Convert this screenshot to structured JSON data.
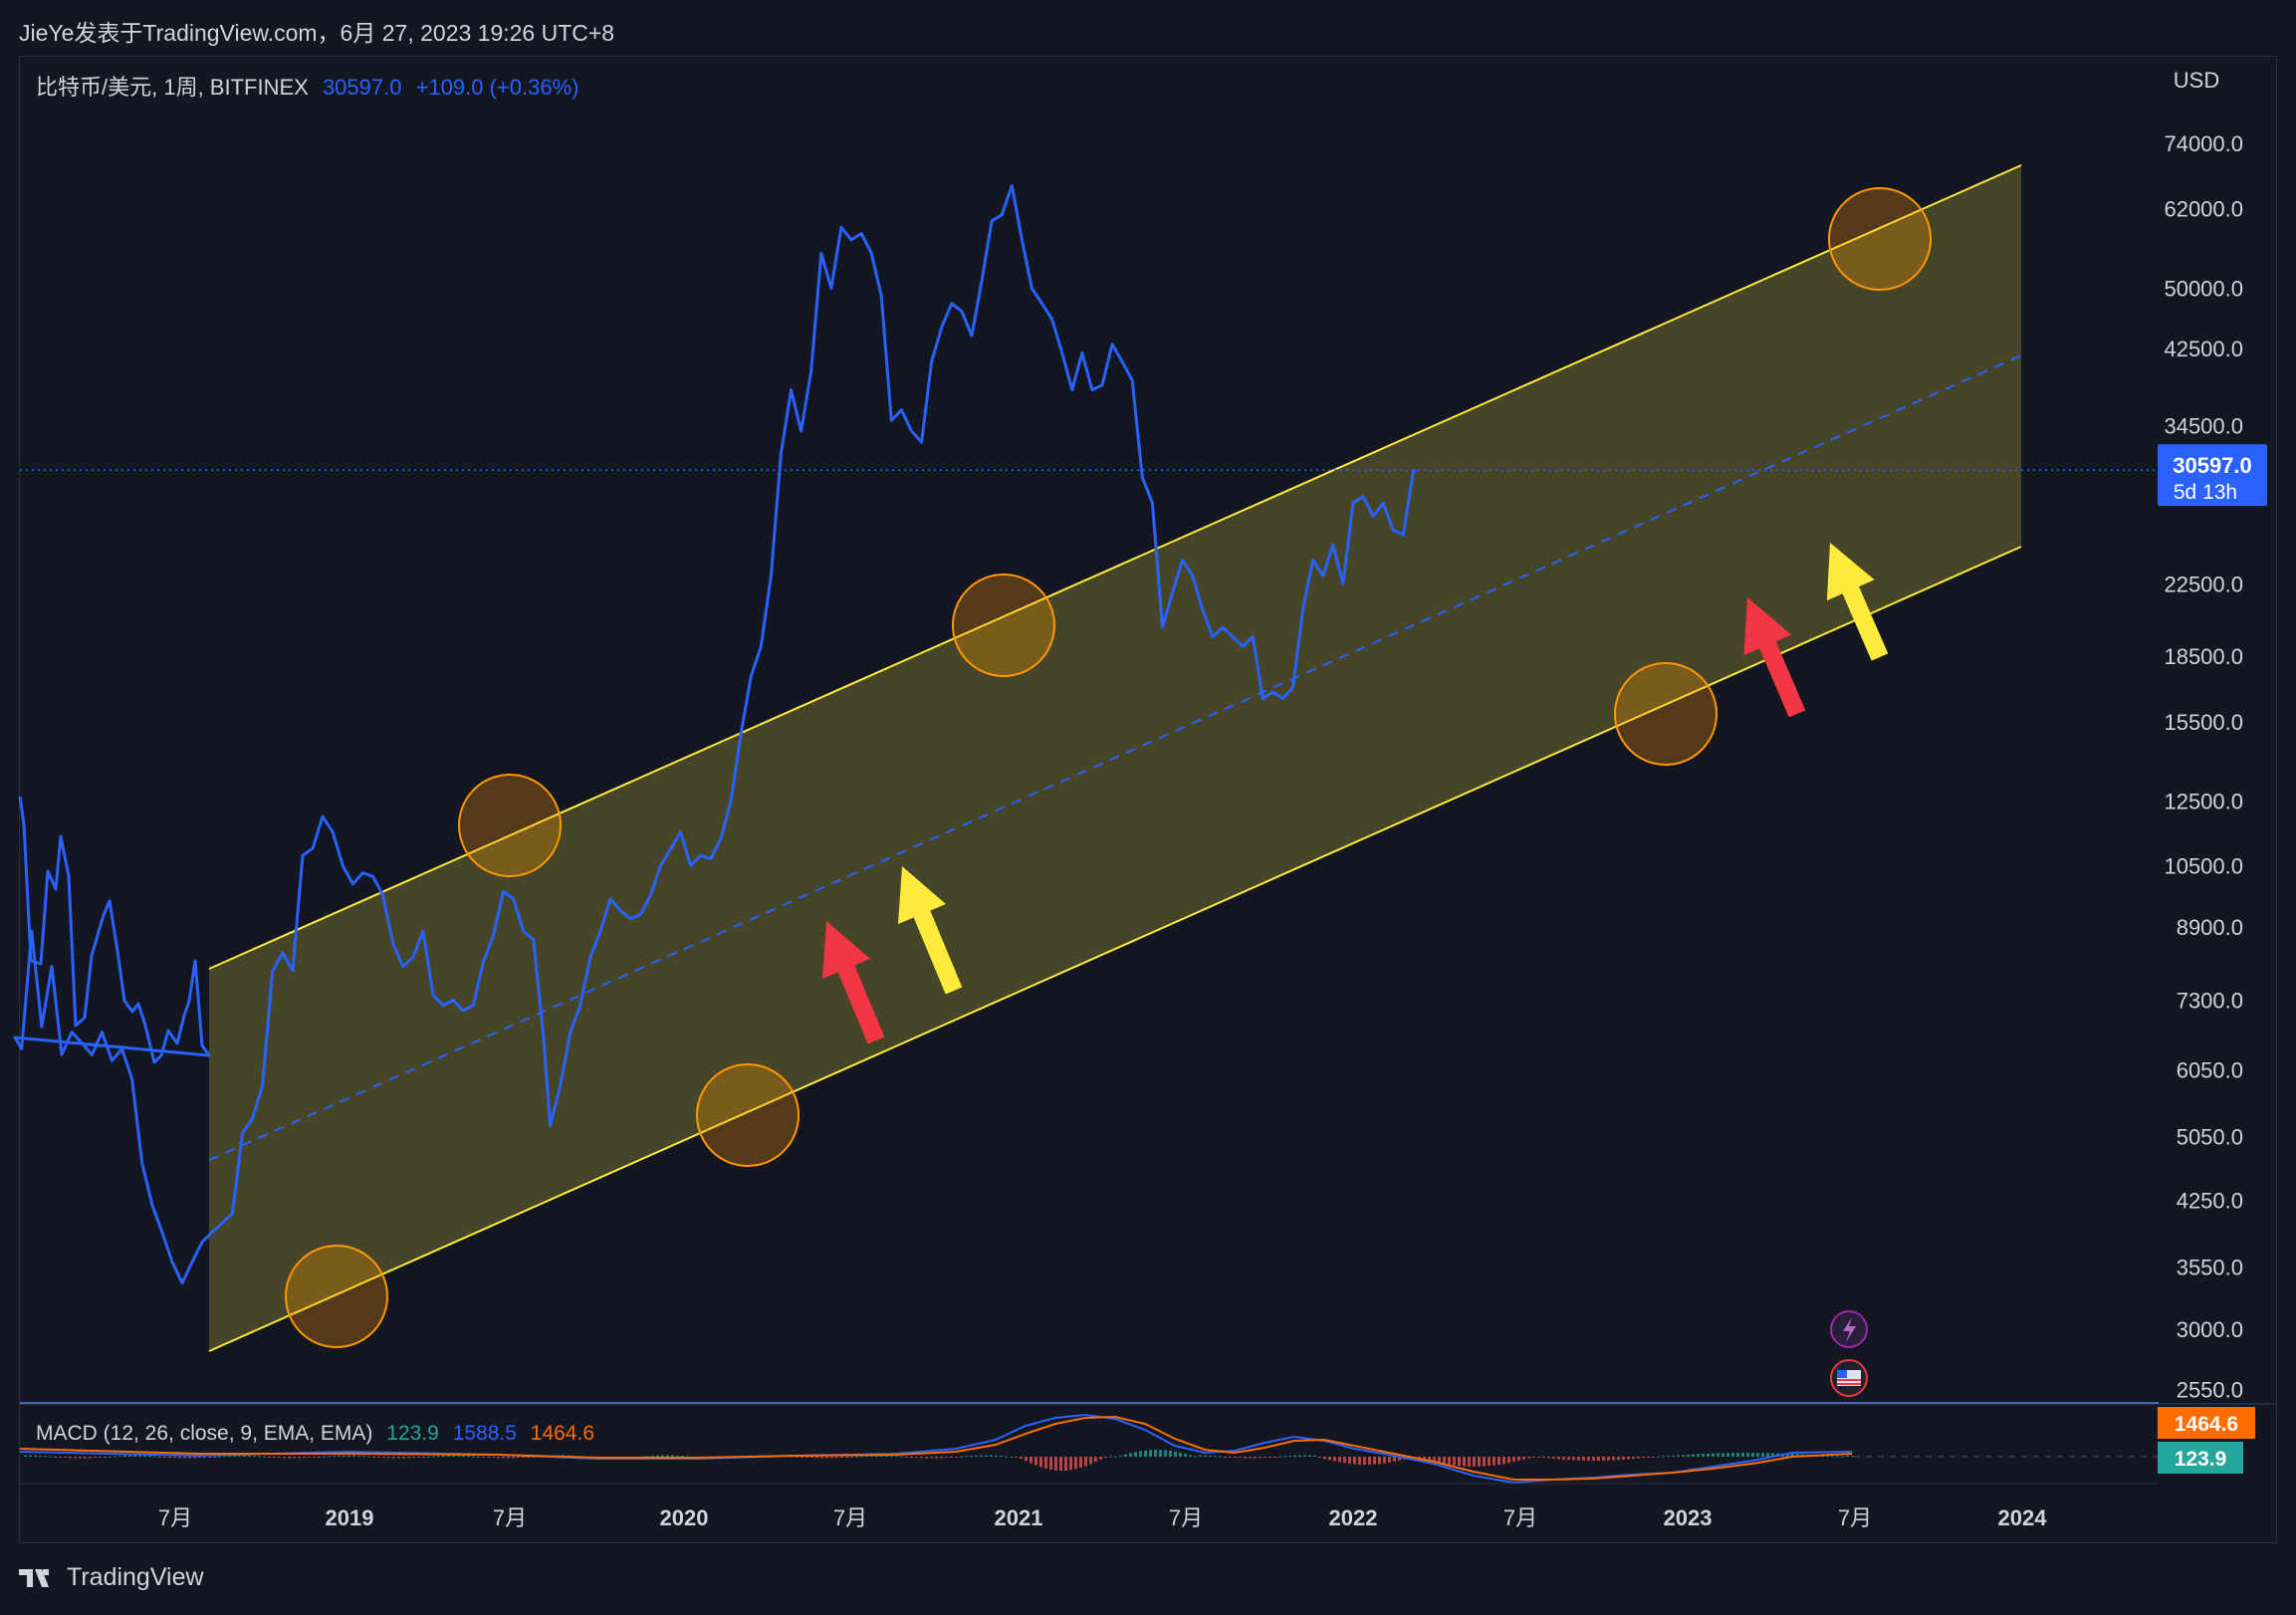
{
  "header": {
    "published": "JieYe发表于TradingView.com，6月 27, 2023 19:26 UTC+8"
  },
  "symbol": {
    "name": "比特币/美元, 1周, BITFINEX",
    "price": "30597.0",
    "change": "+109.0 (+0.36%)"
  },
  "price_axis": {
    "currency": "USD",
    "ticks": [
      "74000.0",
      "62000.0",
      "50000.0",
      "42500.0",
      "34500.0",
      "22500.0",
      "18500.0",
      "15500.0",
      "12500.0",
      "10500.0",
      "8900.0",
      "7300.0",
      "6050.0",
      "5050.0",
      "4250.0",
      "3550.0",
      "3000.0",
      "2550.0"
    ],
    "last_price_label": "30597.0",
    "countdown": "5d 13h"
  },
  "time_axis": {
    "ticks": [
      {
        "label": "7月",
        "bold": false
      },
      {
        "label": "2019",
        "bold": true
      },
      {
        "label": "7月",
        "bold": false
      },
      {
        "label": "2020",
        "bold": true
      },
      {
        "label": "7月",
        "bold": false
      },
      {
        "label": "2021",
        "bold": true
      },
      {
        "label": "7月",
        "bold": false
      },
      {
        "label": "2022",
        "bold": true
      },
      {
        "label": "7月",
        "bold": false
      },
      {
        "label": "2023",
        "bold": true
      },
      {
        "label": "7月",
        "bold": false
      },
      {
        "label": "2024",
        "bold": true
      }
    ]
  },
  "macd": {
    "name": "MACD (12, 26, close, 9, EMA, EMA)",
    "histogram": "123.9",
    "macd": "1588.5",
    "signal": "1464.6",
    "signal_badge": "1464.6",
    "hist_badge": "123.9"
  },
  "footer": {
    "brand": "TradingView"
  },
  "colors": {
    "price_line": "#2962ff",
    "channel": "#ffeb3b",
    "circle": "#ff9800",
    "arrow_red": "#f23645",
    "arrow_yellow": "#ffeb3b",
    "macd_signal": "#ff6d00",
    "macd_hist": "#26a69a"
  },
  "chart_data": {
    "type": "line",
    "scale": "log",
    "series": [
      {
        "values": [
          [
            2018.0,
            6600
          ],
          [
            2018.02,
            6400
          ],
          [
            2018.05,
            8800
          ],
          [
            2018.08,
            6800
          ],
          [
            2018.11,
            8000
          ],
          [
            2018.14,
            6300
          ],
          [
            2018.17,
            6700
          ],
          [
            2018.2,
            6500
          ],
          [
            2018.23,
            6300
          ],
          [
            2018.26,
            6700
          ],
          [
            2018.29,
            6200
          ],
          [
            2018.32,
            6400
          ],
          [
            2018.35,
            5900
          ],
          [
            2018.38,
            4700
          ],
          [
            2018.41,
            4200
          ],
          [
            2018.44,
            3900
          ],
          [
            2018.47,
            3600
          ],
          [
            2018.5,
            3400
          ],
          [
            2018.53,
            3600
          ],
          [
            2018.56,
            3800
          ],
          [
            2018.59,
            3900
          ],
          [
            2018.62,
            4000
          ],
          [
            2018.65,
            4100
          ],
          [
            2018.68,
            5100
          ],
          [
            2018.71,
            5300
          ],
          [
            2018.74,
            5800
          ],
          [
            2018.77,
            7900
          ],
          [
            2018.8,
            8300
          ],
          [
            2018.83,
            7900
          ],
          [
            2018.86,
            10800
          ],
          [
            2018.89,
            11000
          ],
          [
            2018.92,
            12000
          ],
          [
            2018.95,
            11500
          ],
          [
            2018.98,
            10500
          ],
          [
            2019.01,
            10000
          ],
          [
            2019.04,
            10300
          ],
          [
            2019.07,
            10200
          ],
          [
            2019.1,
            9700
          ],
          [
            2019.13,
            8500
          ],
          [
            2019.16,
            8000
          ],
          [
            2019.19,
            8200
          ],
          [
            2019.22,
            8800
          ],
          [
            2019.25,
            7400
          ],
          [
            2019.28,
            7200
          ],
          [
            2019.31,
            7300
          ],
          [
            2019.34,
            7100
          ],
          [
            2019.37,
            7200
          ],
          [
            2019.4,
            8100
          ],
          [
            2019.43,
            8700
          ],
          [
            2019.46,
            9800
          ],
          [
            2019.49,
            9600
          ],
          [
            2019.52,
            8800
          ],
          [
            2019.55,
            8600
          ],
          [
            2019.58,
            6600
          ],
          [
            2019.6,
            5200
          ],
          [
            2019.63,
            5800
          ],
          [
            2019.66,
            6700
          ],
          [
            2019.69,
            7200
          ],
          [
            2019.72,
            8200
          ],
          [
            2019.75,
            8800
          ],
          [
            2019.78,
            9600
          ],
          [
            2019.81,
            9300
          ],
          [
            2019.84,
            9100
          ],
          [
            2019.87,
            9200
          ],
          [
            2019.9,
            9700
          ],
          [
            2019.93,
            10500
          ],
          [
            2019.96,
            11000
          ],
          [
            2019.99,
            11500
          ],
          [
            2020.02,
            10500
          ],
          [
            2020.05,
            10800
          ],
          [
            2020.08,
            10700
          ],
          [
            2020.11,
            11300
          ],
          [
            2020.14,
            12500
          ],
          [
            2020.17,
            15000
          ],
          [
            2020.2,
            17500
          ],
          [
            2020.23,
            19000
          ],
          [
            2020.26,
            23000
          ],
          [
            2020.29,
            32000
          ],
          [
            2020.32,
            38000
          ],
          [
            2020.35,
            34000
          ],
          [
            2020.38,
            40000
          ],
          [
            2020.41,
            55000
          ],
          [
            2020.44,
            50000
          ],
          [
            2020.47,
            59000
          ],
          [
            2020.5,
            57000
          ],
          [
            2020.53,
            58000
          ],
          [
            2020.56,
            55000
          ],
          [
            2020.59,
            49000
          ],
          [
            2020.62,
            35000
          ],
          [
            2020.65,
            36000
          ],
          [
            2020.68,
            34000
          ],
          [
            2020.71,
            33000
          ],
          [
            2020.74,
            41000
          ],
          [
            2020.77,
            45000
          ],
          [
            2020.8,
            48000
          ],
          [
            2020.83,
            47000
          ],
          [
            2020.86,
            44000
          ],
          [
            2020.89,
            51000
          ],
          [
            2020.92,
            60000
          ],
          [
            2020.95,
            61000
          ],
          [
            2020.98,
            66000
          ],
          [
            2021.01,
            57000
          ],
          [
            2021.04,
            50000
          ],
          [
            2021.07,
            48000
          ],
          [
            2021.1,
            46000
          ],
          [
            2021.13,
            42000
          ],
          [
            2021.16,
            38000
          ],
          [
            2021.19,
            42000
          ],
          [
            2021.22,
            38000
          ],
          [
            2021.25,
            38500
          ],
          [
            2021.28,
            43000
          ],
          [
            2021.31,
            41000
          ],
          [
            2021.34,
            39000
          ],
          [
            2021.37,
            30000
          ],
          [
            2021.4,
            28000
          ],
          [
            2021.43,
            20000
          ],
          [
            2021.46,
            22000
          ],
          [
            2021.49,
            24000
          ],
          [
            2021.52,
            23000
          ],
          [
            2021.55,
            21000
          ],
          [
            2021.58,
            19500
          ],
          [
            2021.61,
            20000
          ],
          [
            2021.64,
            19500
          ],
          [
            2021.67,
            19000
          ],
          [
            2021.7,
            19500
          ],
          [
            2021.73,
            16500
          ],
          [
            2021.76,
            16800
          ],
          [
            2021.79,
            16500
          ],
          [
            2021.82,
            17000
          ],
          [
            2021.85,
            21000
          ],
          [
            2021.88,
            24000
          ],
          [
            2021.91,
            23000
          ],
          [
            2021.94,
            25000
          ],
          [
            2021.97,
            22500
          ],
          [
            2022.0,
            28000
          ],
          [
            2022.03,
            28500
          ],
          [
            2022.06,
            27000
          ],
          [
            2022.09,
            28000
          ],
          [
            2022.12,
            26000
          ],
          [
            2022.15,
            25700
          ],
          [
            2022.18,
            30500
          ],
          [
            2022.19,
            30597
          ]
        ]
      }
    ],
    "time_axis_years": [
      "2019",
      "2020",
      "2021",
      "2022",
      "2023",
      "2024"
    ],
    "ylim": [
      2400,
      80000
    ]
  }
}
